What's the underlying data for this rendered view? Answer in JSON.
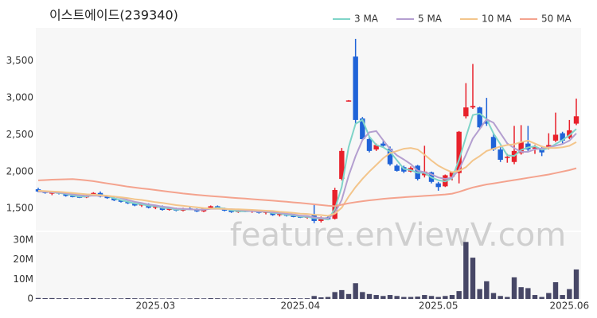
{
  "chart_data": [
    {
      "type": "candlestick",
      "title": "이스트에이드(239340)",
      "ylim": [
        1200,
        3950
      ],
      "yticks": [
        {
          "value": 1500,
          "label": "1,500"
        },
        {
          "value": 2000,
          "label": "2,000"
        },
        {
          "value": 2500,
          "label": "2,500"
        },
        {
          "value": 3000,
          "label": "3,000"
        },
        {
          "value": 3500,
          "label": "3,500"
        }
      ],
      "grid": false,
      "up_color": "#e8212b",
      "down_color": "#1f63d8",
      "legend": "top-right",
      "open": [
        1760,
        1730,
        1700,
        1720,
        1700,
        1670,
        1660,
        1650,
        1680,
        1710,
        1660,
        1640,
        1610,
        1590,
        1570,
        1540,
        1560,
        1510,
        1530,
        1480,
        1500,
        1470,
        1500,
        1490,
        1460,
        1500,
        1530,
        1500,
        1470,
        1450,
        1470,
        1460,
        1470,
        1440,
        1460,
        1410,
        1430,
        1400,
        1390,
        1380,
        1420,
        1330,
        1380,
        1360,
        1900,
        2960,
        3560,
        2720,
        2440,
        2300,
        2380,
        2310,
        2080,
        2060,
        2000,
        2080,
        1950,
        1990,
        1840,
        1800,
        1930,
        1980,
        2750,
        2870,
        2870,
        2680,
        2470,
        2300,
        2190,
        2130,
        2250,
        2380,
        2310,
        2320,
        2330,
        2420,
        2520,
        2460,
        2650
      ],
      "high": [
        1780,
        1740,
        1730,
        1730,
        1710,
        1690,
        1680,
        1690,
        1720,
        1730,
        1680,
        1650,
        1620,
        1600,
        1580,
        1570,
        1570,
        1540,
        1540,
        1510,
        1510,
        1510,
        1520,
        1500,
        1510,
        1540,
        1540,
        1510,
        1490,
        1480,
        1490,
        1480,
        1480,
        1470,
        1470,
        1440,
        1450,
        1420,
        1410,
        1400,
        1560,
        1390,
        1410,
        1780,
        2320,
        2970,
        3800,
        2740,
        2480,
        2380,
        2410,
        2340,
        2100,
        2080,
        2070,
        2090,
        2350,
        2000,
        1860,
        1960,
        2000,
        2550,
        3200,
        3460,
        2880,
        3000,
        2520,
        2350,
        2240,
        2620,
        2630,
        2620,
        2360,
        2350,
        2520,
        2800,
        2540,
        2700,
        2990
      ],
      "low": [
        1720,
        1700,
        1680,
        1690,
        1660,
        1650,
        1640,
        1640,
        1670,
        1650,
        1630,
        1600,
        1580,
        1560,
        1530,
        1520,
        1500,
        1490,
        1470,
        1470,
        1460,
        1460,
        1480,
        1450,
        1450,
        1490,
        1490,
        1460,
        1440,
        1440,
        1450,
        1440,
        1430,
        1420,
        1400,
        1390,
        1390,
        1380,
        1370,
        1360,
        1300,
        1310,
        1340,
        1350,
        1880,
        2950,
        2640,
        2420,
        2260,
        2280,
        2330,
        2080,
        2000,
        1980,
        1990,
        1880,
        1920,
        1840,
        1740,
        1790,
        1880,
        1840,
        2720,
        2850,
        2570,
        2620,
        2280,
        2130,
        2120,
        2100,
        2230,
        2280,
        2240,
        2210,
        2300,
        2400,
        2380,
        2440,
        2630
      ],
      "close": [
        1730,
        1710,
        1720,
        1700,
        1670,
        1660,
        1650,
        1680,
        1710,
        1660,
        1640,
        1610,
        1590,
        1570,
        1540,
        1560,
        1510,
        1530,
        1480,
        1500,
        1470,
        1500,
        1490,
        1460,
        1500,
        1530,
        1500,
        1470,
        1450,
        1470,
        1460,
        1470,
        1440,
        1460,
        1410,
        1430,
        1400,
        1390,
        1380,
        1390,
        1330,
        1370,
        1350,
        1750,
        2280,
        2965,
        2700,
        2440,
        2280,
        2360,
        2350,
        2100,
        2010,
        2000,
        2050,
        1900,
        2000,
        1860,
        1790,
        1950,
        1990,
        2540,
        2870,
        2890,
        2600,
        2650,
        2300,
        2160,
        2200,
        2280,
        2400,
        2300,
        2330,
        2260,
        2360,
        2500,
        2420,
        2560,
        2750
      ],
      "series": [
        {
          "name": "3 MA",
          "color": "#7fd4c8",
          "values": [
            1740,
            1730,
            1720,
            1710,
            1697,
            1677,
            1660,
            1663,
            1680,
            1683,
            1670,
            1637,
            1613,
            1590,
            1567,
            1557,
            1537,
            1533,
            1507,
            1503,
            1483,
            1490,
            1487,
            1483,
            1483,
            1497,
            1510,
            1500,
            1473,
            1463,
            1460,
            1467,
            1457,
            1457,
            1437,
            1433,
            1413,
            1407,
            1390,
            1387,
            1367,
            1363,
            1350,
            1490,
            1793,
            2332,
            2648,
            2702,
            2473,
            2360,
            2330,
            2270,
            2153,
            2037,
            2020,
            1983,
            1983,
            1920,
            1883,
            1867,
            1910,
            2160,
            2467,
            2767,
            2787,
            2713,
            2517,
            2370,
            2220,
            2213,
            2293,
            2327,
            2343,
            2297,
            2317,
            2373,
            2427,
            2493,
            2577
          ]
        },
        {
          "name": "5 MA",
          "color": "#b49fd0",
          "values": [
            1730,
            1725,
            1720,
            1715,
            1706,
            1692,
            1680,
            1672,
            1674,
            1672,
            1668,
            1660,
            1642,
            1614,
            1590,
            1574,
            1554,
            1542,
            1524,
            1516,
            1498,
            1496,
            1488,
            1484,
            1484,
            1496,
            1496,
            1492,
            1490,
            1484,
            1470,
            1464,
            1458,
            1460,
            1448,
            1442,
            1428,
            1418,
            1402,
            1398,
            1378,
            1372,
            1364,
            1438,
            1616,
            1943,
            2209,
            2427,
            2533,
            2549,
            2426,
            2306,
            2220,
            2164,
            2102,
            2012,
            1992,
            1962,
            1920,
            1900,
            1918,
            2026,
            2228,
            2448,
            2578,
            2710,
            2662,
            2520,
            2382,
            2318,
            2268,
            2268,
            2302,
            2314,
            2330,
            2350,
            2374,
            2420,
            2518
          ]
        },
        {
          "name": "10 MA",
          "color": "#f3c58b",
          "values": [
            1740,
            1735,
            1730,
            1725,
            1718,
            1710,
            1700,
            1692,
            1686,
            1680,
            1672,
            1662,
            1652,
            1640,
            1625,
            1615,
            1600,
            1585,
            1575,
            1560,
            1545,
            1535,
            1525,
            1515,
            1505,
            1500,
            1498,
            1494,
            1490,
            1488,
            1485,
            1480,
            1475,
            1470,
            1465,
            1455,
            1448,
            1440,
            1430,
            1425,
            1415,
            1410,
            1400,
            1430,
            1510,
            1660,
            1790,
            1900,
            2000,
            2090,
            2180,
            2250,
            2280,
            2310,
            2320,
            2300,
            2230,
            2150,
            2080,
            2030,
            1990,
            2010,
            2060,
            2150,
            2210,
            2280,
            2310,
            2340,
            2360,
            2370,
            2400,
            2420,
            2380,
            2340,
            2320,
            2320,
            2330,
            2350,
            2400
          ]
        },
        {
          "name": "50 MA",
          "color": "#f4a38e",
          "values": [
            1880,
            1885,
            1890,
            1893,
            1896,
            1898,
            1890,
            1880,
            1870,
            1855,
            1840,
            1825,
            1810,
            1795,
            1783,
            1772,
            1762,
            1750,
            1738,
            1726,
            1714,
            1703,
            1693,
            1684,
            1676,
            1668,
            1661,
            1654,
            1647,
            1640,
            1633,
            1626,
            1619,
            1612,
            1605,
            1598,
            1590,
            1582,
            1574,
            1566,
            1556,
            1546,
            1536,
            1530,
            1550,
            1570,
            1585,
            1598,
            1610,
            1620,
            1630,
            1638,
            1645,
            1652,
            1658,
            1664,
            1670,
            1676,
            1682,
            1690,
            1700,
            1725,
            1755,
            1785,
            1805,
            1825,
            1840,
            1855,
            1870,
            1885,
            1900,
            1915,
            1930,
            1945,
            1960,
            1980,
            2000,
            2020,
            2045
          ]
        }
      ]
    },
    {
      "type": "bar",
      "color": "#474766",
      "ylim": [
        0,
        34000000
      ],
      "yticks": [
        0,
        {
          "value": 10000000,
          "label": "10M"
        },
        {
          "value": 20000000,
          "label": "20M"
        },
        {
          "value": 30000000,
          "label": "30M"
        }
      ],
      "categories": [
        null,
        null,
        null,
        null,
        null,
        null,
        null,
        null,
        null,
        null,
        null,
        null,
        null,
        null,
        null,
        null,
        null,
        "2025.03",
        null,
        null,
        null,
        null,
        null,
        null,
        null,
        null,
        null,
        null,
        null,
        null,
        null,
        null,
        null,
        null,
        null,
        null,
        null,
        null,
        "2025.04",
        null,
        null,
        null,
        null,
        null,
        null,
        null,
        null,
        null,
        null,
        null,
        null,
        null,
        null,
        null,
        null,
        null,
        null,
        null,
        "2025.05",
        null,
        null,
        null,
        null,
        null,
        null,
        null,
        null,
        null,
        null,
        null,
        null,
        null,
        null,
        null,
        null,
        null,
        null,
        "2025.06",
        null
      ],
      "values": [
        500000,
        400000,
        450000,
        350000,
        400000,
        300000,
        350000,
        400000,
        450000,
        350000,
        300000,
        350000,
        300000,
        400000,
        350000,
        300000,
        350000,
        300000,
        250000,
        300000,
        300000,
        250000,
        300000,
        350000,
        300000,
        400000,
        350000,
        300000,
        250000,
        300000,
        300000,
        250000,
        300000,
        350000,
        400000,
        300000,
        350000,
        400000,
        300000,
        350000,
        1500000,
        800000,
        1000000,
        3500000,
        4500000,
        2500000,
        8000000,
        3500000,
        2500000,
        2000000,
        1500000,
        2000000,
        1500000,
        1000000,
        1000000,
        1200000,
        2000000,
        1500000,
        1000000,
        1500000,
        2000000,
        4000000,
        29000000,
        21000000,
        5000000,
        9000000,
        3000000,
        1500000,
        1000000,
        11000000,
        6000000,
        5500000,
        2000000,
        1000000,
        3000000,
        8500000,
        2000000,
        5000000,
        15000000
      ]
    }
  ],
  "watermark": "feature.enViewV.com"
}
